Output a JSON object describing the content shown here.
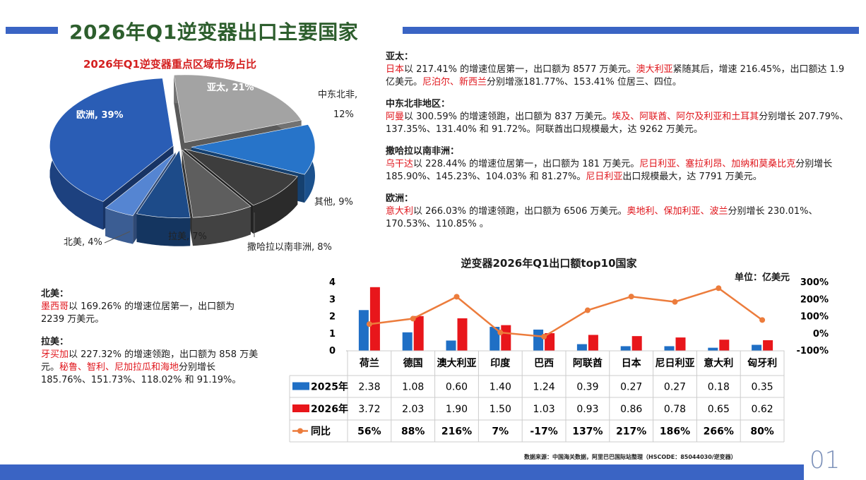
{
  "page": {
    "title": "2026年Q1逆变器出口主要国家",
    "page_number": "01",
    "source": "数据来源：中国海关数据，阿里巴巴国际站整理（HSCODE：85044030/逆变器）"
  },
  "colors": {
    "accent_blue": "#3a64c4",
    "highlight_red": "#e0161c",
    "title_green": "#2d5e2d",
    "series_2025": "#1f6fc5",
    "series_2026": "#e8161b",
    "yoy_line": "#ec7c3c"
  },
  "notes": {
    "asia_pacific": {
      "heading": "亚太：",
      "parts": [
        {
          "t": "日本",
          "h": true
        },
        {
          "t": "以 217.41% 的增速位居第一，出口额为 8577 万美元。",
          "h": false
        },
        {
          "t": "澳大利亚",
          "h": true
        },
        {
          "t": "紧随其后，增速 216.45%，出口额达 1.9 亿美元。",
          "h": false
        },
        {
          "t": "尼泊尔、新西兰",
          "h": true
        },
        {
          "t": "分别增涨181.77%、153.41% 位居三、四位。",
          "h": false
        }
      ]
    },
    "mena": {
      "heading": "中东北非地区：",
      "parts": [
        {
          "t": "阿曼",
          "h": true
        },
        {
          "t": "以 300.59% 的增速领跑，出口额为 837 万美元。",
          "h": false
        },
        {
          "t": "埃及、阿联酋、阿尔及利亚和土耳其",
          "h": true
        },
        {
          "t": "分别增长 207.79%、137.35%、131.40% 和 91.72%。阿联酋出口规模最大，达 9262 万美元。",
          "h": false
        }
      ]
    },
    "subsaharan": {
      "heading": "撒哈拉以南非洲：",
      "parts": [
        {
          "t": "乌干达",
          "h": true
        },
        {
          "t": "以 228.44% 的增速位居第一，出口额为 181 万美元。",
          "h": false
        },
        {
          "t": "尼日利亚、塞拉利昂、加纳和莫桑比克",
          "h": true
        },
        {
          "t": "分别增长 185.90%、145.23%、104.03% 和 81.27%。",
          "h": false
        },
        {
          "t": "尼日利亚",
          "h": true
        },
        {
          "t": "出口规模最大，达 7791 万美元。",
          "h": false
        }
      ]
    },
    "europe": {
      "heading": "欧洲：",
      "parts": [
        {
          "t": "意大利",
          "h": true
        },
        {
          "t": "以 266.03% 的增速领跑，出口额为 6506 万美元。",
          "h": false
        },
        {
          "t": "奥地利、保加利亚、波兰",
          "h": true
        },
        {
          "t": "分别增长 230.01%、170.53%、110.85% 。",
          "h": false
        }
      ]
    },
    "north_america": {
      "heading": "北美：",
      "parts": [
        {
          "t": "墨西哥",
          "h": true
        },
        {
          "t": "以 169.26% 的增速位居第一，出口额为 2239 万美元。",
          "h": false
        }
      ]
    },
    "latin_america": {
      "heading": "拉美：",
      "parts": [
        {
          "t": "牙买加",
          "h": true
        },
        {
          "t": "以 227.32% 的增速领跑，出口额为 858 万美元。",
          "h": false
        },
        {
          "t": "秘鲁、智利、尼加拉瓜和海地",
          "h": true
        },
        {
          "t": "分别增长 185.76%、151.73%、118.02% 和 91.19%。",
          "h": false
        }
      ]
    }
  },
  "chart_data": [
    {
      "type": "pie",
      "style": "3d-exploded",
      "title": "2026年Q1逆变器重点区域市场占比",
      "labels": [
        "亚太",
        "中东北非",
        "其他",
        "撒哈拉以南非洲",
        "拉美",
        "北美",
        "欧洲"
      ],
      "values": [
        21,
        12,
        9,
        8,
        7,
        4,
        39
      ],
      "value_labels": [
        "亚太, 21%",
        "中东北非,\n12%",
        "其他, 9%",
        "撒哈拉以南非洲, 8%",
        "拉美, 7%",
        "北美, 4%",
        "欧洲, 39%"
      ],
      "colors": [
        "#a3a3a3",
        "#2774c9",
        "#3d3d3d",
        "#5e5e5e",
        "#1d4b89",
        "#5585d2",
        "#2a5db5"
      ]
    },
    {
      "type": "bar",
      "title": "逆变器2026年Q1出口额top10国家",
      "unit": "单位：亿美元",
      "categories": [
        "荷兰",
        "德国",
        "澳大利亚",
        "印度",
        "巴西",
        "阿联酋",
        "日本",
        "尼日利亚",
        "意大利",
        "匈牙利"
      ],
      "series": [
        {
          "name": "2025年",
          "type": "bar",
          "values": [
            2.38,
            1.08,
            0.6,
            1.4,
            1.24,
            0.39,
            0.27,
            0.27,
            0.18,
            0.35
          ],
          "labels": [
            "2.38",
            "1.08",
            "0.60",
            "1.40",
            "1.24",
            "0.39",
            "0.27",
            "0.27",
            "0.18",
            "0.35"
          ]
        },
        {
          "name": "2026年",
          "type": "bar",
          "values": [
            3.72,
            2.03,
            1.9,
            1.5,
            1.03,
            0.93,
            0.86,
            0.78,
            0.65,
            0.62
          ],
          "labels": [
            "3.72",
            "2.03",
            "1.90",
            "1.50",
            "1.03",
            "0.93",
            "0.86",
            "0.78",
            "0.65",
            "0.62"
          ]
        },
        {
          "name": "同比",
          "type": "line",
          "axis": "right",
          "values": [
            56,
            88,
            216,
            7,
            -17,
            137,
            217,
            186,
            266,
            80
          ],
          "labels": [
            "56%",
            "88%",
            "216%",
            "7%",
            "-17%",
            "137%",
            "217%",
            "186%",
            "266%",
            "80%"
          ]
        }
      ],
      "y_left": {
        "range": [
          0,
          4
        ],
        "ticks": [
          "0",
          "1",
          "2",
          "3",
          "4"
        ]
      },
      "y_right": {
        "range": [
          -100,
          300
        ],
        "ticks": [
          "-100%",
          "0%",
          "100%",
          "200%",
          "300%"
        ]
      },
      "data_table": true
    }
  ]
}
